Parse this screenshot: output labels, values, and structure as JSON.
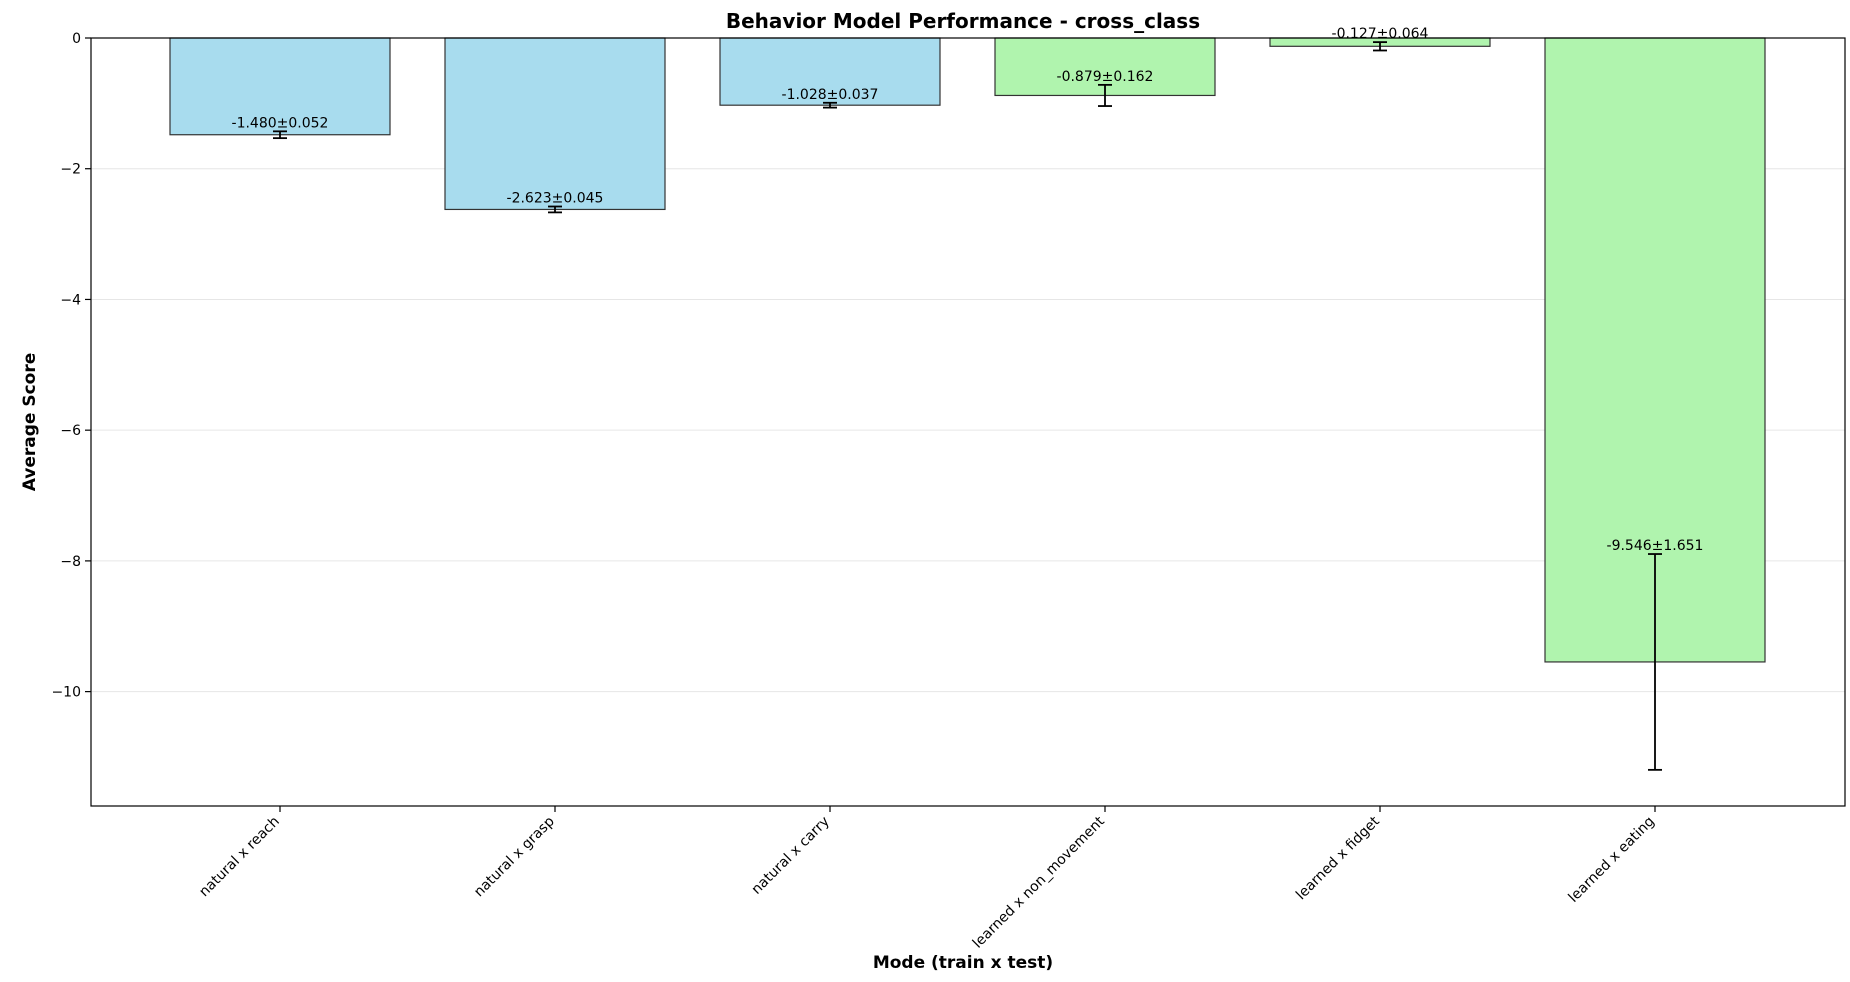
{
  "chart_data": {
    "type": "bar",
    "title": "Behavior Model Performance - cross_class",
    "xlabel": "Mode (train x test)",
    "ylabel": "Average Score",
    "categories": [
      "natural x reach",
      "natural x grasp",
      "natural x carry",
      "learned x non_movement",
      "learned x fidget",
      "learned x eating"
    ],
    "values": [
      -1.48,
      -2.623,
      -1.028,
      -0.879,
      -0.127,
      -9.546
    ],
    "errors": [
      0.052,
      0.045,
      0.037,
      0.162,
      0.064,
      1.651
    ],
    "data_labels": [
      "-1.480±0.052",
      "-2.623±0.045",
      "-1.028±0.037",
      "-0.879±0.162",
      "-0.127±0.064",
      "-9.546±1.651"
    ],
    "bar_colors": [
      "#a8dcee",
      "#a8dcee",
      "#a8dcee",
      "#b0f4ae",
      "#b0f4ae",
      "#b0f4ae"
    ],
    "ylim": [
      -11.75,
      0
    ],
    "yticks": [
      0,
      -2,
      -4,
      -6,
      -8,
      -10
    ],
    "ytick_labels": [
      "0",
      "−2",
      "−4",
      "−6",
      "−8",
      "−10"
    ],
    "grid": "y-only",
    "legend": "none"
  }
}
